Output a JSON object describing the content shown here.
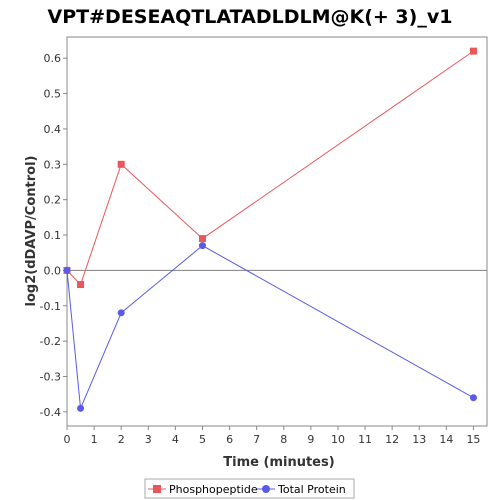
{
  "chart_data": {
    "type": "line",
    "title": "VPT#DESEAQTLATADLDLM@K(+ 3)_v1",
    "xlabel": "Time (minutes)",
    "ylabel": "log2(dDAVP/Control)",
    "xlim": [
      0,
      15.5
    ],
    "ylim": [
      -0.44,
      0.66
    ],
    "x_ticks": [
      0,
      1,
      2,
      3,
      4,
      5,
      6,
      7,
      8,
      9,
      10,
      11,
      12,
      13,
      14,
      15
    ],
    "y_ticks": [
      -0.4,
      -0.3,
      -0.2,
      -0.1,
      0.0,
      0.1,
      0.2,
      0.3,
      0.4,
      0.5,
      0.6
    ],
    "y_tick_labels": [
      "-0.4",
      "-0.3",
      "-0.2",
      "-0.1",
      "0.0",
      "0.1",
      "0.2",
      "0.3",
      "0.4",
      "0.5",
      "0.6"
    ],
    "baseline": 0,
    "grid": false,
    "legend_position": "bottom",
    "series": [
      {
        "name": "Phosphopeptide",
        "color": "#e8585a",
        "marker": "square",
        "x": [
          0,
          0.5,
          2,
          5,
          15
        ],
        "y": [
          0.0,
          -0.04,
          0.3,
          0.09,
          0.62
        ]
      },
      {
        "name": "Total Protein",
        "color": "#5a5ae8",
        "marker": "circle",
        "x": [
          0,
          0.5,
          2,
          5,
          15
        ],
        "y": [
          0.0,
          -0.39,
          -0.12,
          0.07,
          -0.36
        ]
      }
    ]
  }
}
